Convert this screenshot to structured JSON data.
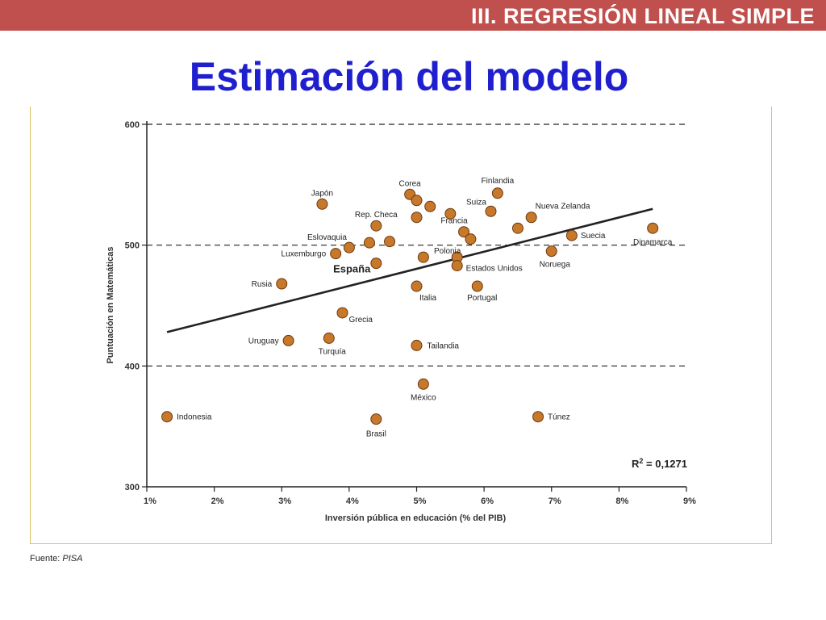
{
  "header": {
    "section": "III. REGRESIÓN LINEAL SIMPLE",
    "title": "Estimación del modelo"
  },
  "footer": {
    "source_label": "Fuente:",
    "source_value": "PISA"
  },
  "colors": {
    "banner": "#c0504d",
    "title": "#1f1fcf",
    "point": "#c8782a",
    "frame": "#d6c45c"
  },
  "chart_data": {
    "type": "scatter",
    "xlabel": "Inversión pública en educación (% del PIB)",
    "ylabel": "Puntuación en Matemáticas",
    "xlim": [
      1,
      9
    ],
    "ylim": [
      300,
      600
    ],
    "xticks": [
      "1%",
      "2%",
      "3%",
      "4%",
      "5%",
      "6%",
      "7%",
      "8%",
      "9%"
    ],
    "yticks": [
      "300",
      "400",
      "500",
      "600"
    ],
    "gridlines_y": [
      400,
      500,
      600
    ],
    "annotation": "R² = 0,1271",
    "regression_line": {
      "x": [
        1.3,
        8.5
      ],
      "y": [
        428,
        530
      ]
    },
    "points": [
      {
        "label": "Indonesia",
        "x": 1.3,
        "y": 358
      },
      {
        "label": "Rusia",
        "x": 3.0,
        "y": 468
      },
      {
        "label": "Uruguay",
        "x": 3.1,
        "y": 421
      },
      {
        "label": "Japón",
        "x": 3.6,
        "y": 534
      },
      {
        "label": "Turquía",
        "x": 3.7,
        "y": 423
      },
      {
        "label": "Luxemburgo",
        "x": 3.8,
        "y": 493
      },
      {
        "label": "Grecia",
        "x": 3.9,
        "y": 444
      },
      {
        "label": "Eslovaquia",
        "x": 4.0,
        "y": 498
      },
      {
        "label": "",
        "x": 4.3,
        "y": 502
      },
      {
        "label": "Brasil",
        "x": 4.4,
        "y": 356
      },
      {
        "label": "España",
        "x": 4.4,
        "y": 485
      },
      {
        "label": "Rep. Checa",
        "x": 4.4,
        "y": 516
      },
      {
        "label": "",
        "x": 4.6,
        "y": 503
      },
      {
        "label": "Corea",
        "x": 4.9,
        "y": 542
      },
      {
        "label": "",
        "x": 5.0,
        "y": 537
      },
      {
        "label": "",
        "x": 5.0,
        "y": 523
      },
      {
        "label": "Italia",
        "x": 5.0,
        "y": 466
      },
      {
        "label": "Tailandia",
        "x": 5.0,
        "y": 417
      },
      {
        "label": "",
        "x": 5.1,
        "y": 490
      },
      {
        "label": "México",
        "x": 5.1,
        "y": 385
      },
      {
        "label": "",
        "x": 5.2,
        "y": 532
      },
      {
        "label": "",
        "x": 5.5,
        "y": 526
      },
      {
        "label": "Polonia",
        "x": 5.6,
        "y": 490
      },
      {
        "label": "Estados Unidos",
        "x": 5.6,
        "y": 483
      },
      {
        "label": "Francia",
        "x": 5.7,
        "y": 511
      },
      {
        "label": "",
        "x": 5.8,
        "y": 505
      },
      {
        "label": "Portugal",
        "x": 5.9,
        "y": 466
      },
      {
        "label": "Suiza",
        "x": 6.1,
        "y": 528
      },
      {
        "label": "Finlandia",
        "x": 6.2,
        "y": 543
      },
      {
        "label": "",
        "x": 6.5,
        "y": 514
      },
      {
        "label": "Nueva Zelanda",
        "x": 6.7,
        "y": 523
      },
      {
        "label": "Túnez",
        "x": 6.8,
        "y": 358
      },
      {
        "label": "Noruega",
        "x": 7.0,
        "y": 495
      },
      {
        "label": "Suecia",
        "x": 7.3,
        "y": 508
      },
      {
        "label": "Dinamarca",
        "x": 8.5,
        "y": 514
      }
    ]
  }
}
